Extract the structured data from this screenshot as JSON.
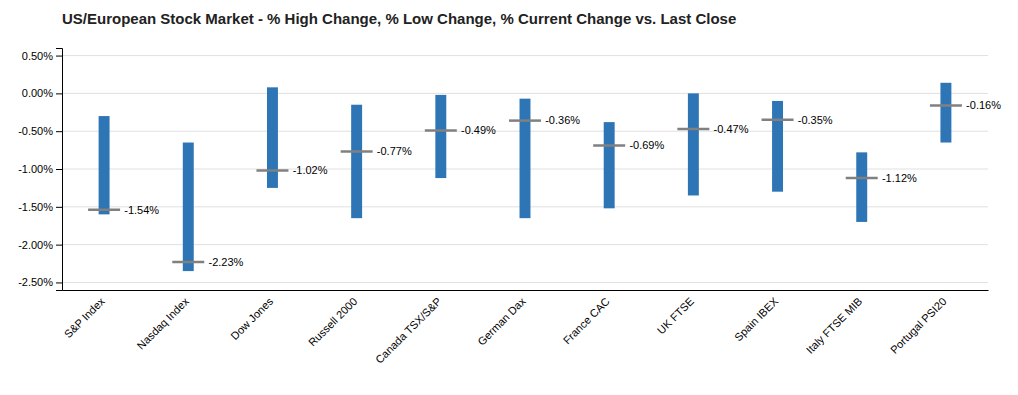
{
  "chart_data": {
    "type": "range",
    "title": "US/European Stock Market - % High Change, % Low Change, % Current Change vs. Last Close",
    "categories": [
      "S&P Index",
      "Nasdaq Index",
      "Dow Jones",
      "Russell 2000",
      "Canada TSX/S&P",
      "German Dax",
      "France CAC",
      "UK FTSE",
      "Spain IBEX",
      "Italy FTSE MIB",
      "Portugal PSI20"
    ],
    "series": [
      {
        "type": "range",
        "color": "#2E75B6",
        "low": [
          -1.6,
          -2.35,
          -1.25,
          -1.65,
          -1.12,
          -1.65,
          -1.52,
          -1.35,
          -1.3,
          -1.7,
          -0.65
        ],
        "high": [
          -0.3,
          -0.65,
          0.08,
          -0.15,
          -0.02,
          -0.07,
          -0.38,
          0.0,
          -0.1,
          -0.78,
          0.14
        ]
      },
      {
        "type": "marker",
        "color": "#808080",
        "values": [
          -1.54,
          -2.23,
          -1.02,
          -0.77,
          -0.49,
          -0.36,
          -0.69,
          -0.47,
          -0.35,
          -1.12,
          -0.16
        ],
        "value_labels": [
          "-1.54%",
          "-2.23%",
          "-1.02%",
          "-0.77%",
          "-0.49%",
          "-0.36%",
          "-0.69%",
          "-0.47%",
          "-0.35%",
          "-1.12%",
          "-0.16%"
        ],
        "data_labels": true
      }
    ],
    "ylim": [
      -2.6,
      0.6
    ],
    "yticks": [
      {
        "value": -2.5,
        "label": "-2.50%"
      },
      {
        "value": -2.0,
        "label": "-2.00%"
      },
      {
        "value": -1.5,
        "label": "-1.50%"
      },
      {
        "value": -1.0,
        "label": "-1.00%"
      },
      {
        "value": -0.5,
        "label": "-0.50%"
      },
      {
        "value": 0.0,
        "label": "0.00%"
      },
      {
        "value": 0.5,
        "label": "0.50%"
      }
    ],
    "grid": true
  }
}
